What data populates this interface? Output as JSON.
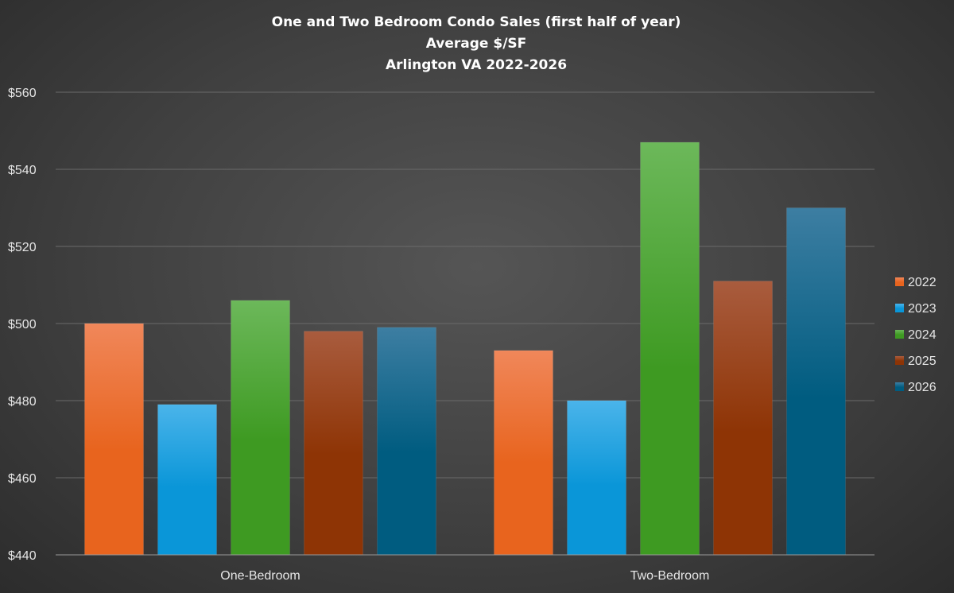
{
  "chart_data": {
    "type": "bar",
    "title": [
      "One and Two Bedroom Condo Sales (first half of year)",
      "Average $/SF",
      "Arlington VA 2022-2026"
    ],
    "categories": [
      "One-Bedroom",
      "Two-Bedroom"
    ],
    "series": [
      {
        "name": "2022",
        "values": [
          500,
          493
        ]
      },
      {
        "name": "2023",
        "values": [
          479,
          480
        ]
      },
      {
        "name": "2024",
        "values": [
          506,
          547
        ]
      },
      {
        "name": "2025",
        "values": [
          498,
          511
        ]
      },
      {
        "name": "2026",
        "values": [
          499,
          530
        ]
      }
    ],
    "ylim": [
      440,
      560
    ],
    "yticks": [
      440,
      460,
      480,
      500,
      520,
      540,
      560
    ],
    "ytick_labels": [
      "$440",
      "$460",
      "$480",
      "$500",
      "$520",
      "$540",
      "$560"
    ],
    "grid": true,
    "legend_position": "right",
    "colors": {
      "2022": [
        "#f0875a",
        "#e8641e"
      ],
      "2023": [
        "#4ab4ea",
        "#0a96d8"
      ],
      "2024": [
        "#6cb85a",
        "#3e9a22"
      ],
      "2025": [
        "#a95c3e",
        "#8e3405"
      ],
      "2026": [
        "#3d7ea2",
        "#005c80"
      ]
    }
  }
}
